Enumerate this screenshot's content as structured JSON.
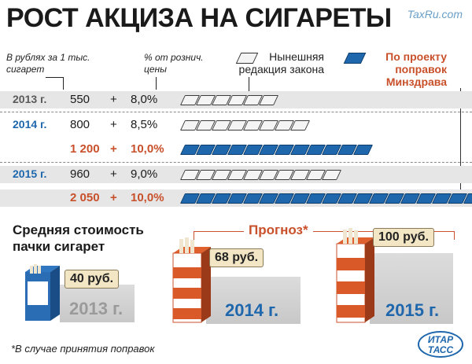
{
  "title": "РОСТ АКЦИЗА НА СИГАРЕТЫ",
  "site": "TaxRu.com",
  "headers": {
    "rubles": "В рублях за 1 тыс. сигарет",
    "percent": "% от рознич. цены"
  },
  "legend": {
    "current": "Нынешняя редакция закона",
    "proposal": "По проекту поправок Минздрава"
  },
  "rows": [
    {
      "year": "2013 г.",
      "value": "550",
      "plus": "+",
      "pct": "8,0%",
      "type": "current",
      "packs": 6
    },
    {
      "year": "2014 г.",
      "value": "800",
      "plus": "+",
      "pct": "8,5%",
      "type": "current",
      "packs": 8
    },
    {
      "year": "",
      "value": "1 200",
      "plus": "+",
      "pct": "10,0%",
      "type": "proposal",
      "packs": 12
    },
    {
      "year": "2015 г.",
      "value": "960",
      "plus": "+",
      "pct": "9,0%",
      "type": "current",
      "packs": 10
    },
    {
      "year": "",
      "value": "2 050",
      "plus": "+",
      "pct": "10,0%",
      "type": "proposal",
      "packs": 20
    }
  ],
  "subtitle": "Средняя стоимость пачки сигарет",
  "forecast": "Прогноз*",
  "years": [
    {
      "year": "2013 г.",
      "price": "40 руб."
    },
    {
      "year": "2014 г.",
      "price": "68 руб."
    },
    {
      "year": "2015 г.",
      "price": "100 руб."
    }
  ],
  "footnote": "*В случае принятия поправок",
  "logo": "ИТАР ТАСС",
  "colors": {
    "accent": "#c8502a",
    "blue": "#1f67ad",
    "gray_band": "#e6e6e6"
  }
}
